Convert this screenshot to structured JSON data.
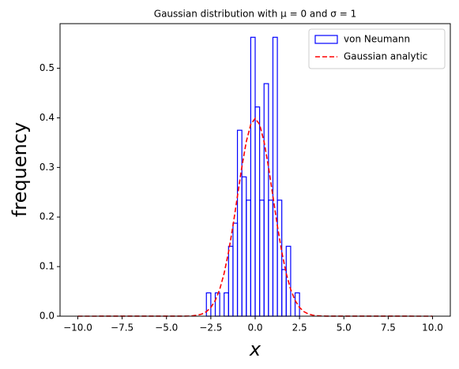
{
  "chart_data": {
    "type": "histogram",
    "title": "Gaussian distribution with μ = 0 and σ = 1",
    "xlabel": "x",
    "ylabel": "frequency",
    "bins": [
      -2.75,
      -2.5,
      -2.25,
      -2.0,
      -1.75,
      -1.5,
      -1.25,
      -1.0,
      -0.75,
      -0.5,
      -0.25,
      0.0,
      0.25,
      0.5,
      0.75,
      1.0,
      1.25,
      1.5,
      1.75,
      2.0,
      2.25,
      2.5
    ],
    "series": [
      {
        "name": "von Neumann",
        "color": "#0000ff",
        "type": "histogram",
        "values": [
          0.047,
          0,
          0.047,
          0,
          0.047,
          0.141,
          0.1875,
          0.375,
          0.281,
          0.234,
          0.5625,
          0.422,
          0.234,
          0.469,
          0.234,
          0.5625,
          0.234,
          0.094,
          0.141,
          0,
          0.047
        ]
      },
      {
        "name": "Gaussian analytic",
        "color": "#ff0000",
        "type": "line",
        "style": "dashed",
        "x": [
          -10,
          -4,
          -3.75,
          -3.5,
          -3.25,
          -3,
          -2.75,
          -2.5,
          -2.25,
          -2,
          -1.75,
          -1.5,
          -1.25,
          -1,
          -0.75,
          -0.5,
          -0.25,
          0,
          0.25,
          0.5,
          0.75,
          1,
          1.25,
          1.5,
          1.75,
          2,
          2.25,
          2.5,
          2.75,
          3,
          3.25,
          3.5,
          3.75,
          4,
          10
        ],
        "values": [
          0,
          0.0001,
          0.0004,
          0.0009,
          0.002,
          0.0044,
          0.0091,
          0.0175,
          0.0317,
          0.054,
          0.0863,
          0.1295,
          0.1826,
          0.242,
          0.3011,
          0.3521,
          0.3867,
          0.3989,
          0.3867,
          0.3521,
          0.3011,
          0.242,
          0.1826,
          0.1295,
          0.0863,
          0.054,
          0.0317,
          0.0175,
          0.0091,
          0.0044,
          0.002,
          0.0009,
          0.0004,
          0.0001,
          0
        ]
      }
    ],
    "xlim": [
      -11,
      11
    ],
    "ylim": [
      0,
      0.59
    ],
    "xticks": [
      {
        "value": -10,
        "label": "−10.0"
      },
      {
        "value": -7.5,
        "label": "−7.5"
      },
      {
        "value": -5,
        "label": "−5.0"
      },
      {
        "value": -2.5,
        "label": "−2.5"
      },
      {
        "value": 0,
        "label": "0.0"
      },
      {
        "value": 2.5,
        "label": "2.5"
      },
      {
        "value": 5,
        "label": "5.0"
      },
      {
        "value": 7.5,
        "label": "7.5"
      },
      {
        "value": 10,
        "label": "10.0"
      }
    ],
    "yticks": [
      {
        "value": 0,
        "label": "0.0"
      },
      0.1,
      0.2,
      0.3,
      0.4,
      0.5
    ],
    "legend": "upper right"
  }
}
